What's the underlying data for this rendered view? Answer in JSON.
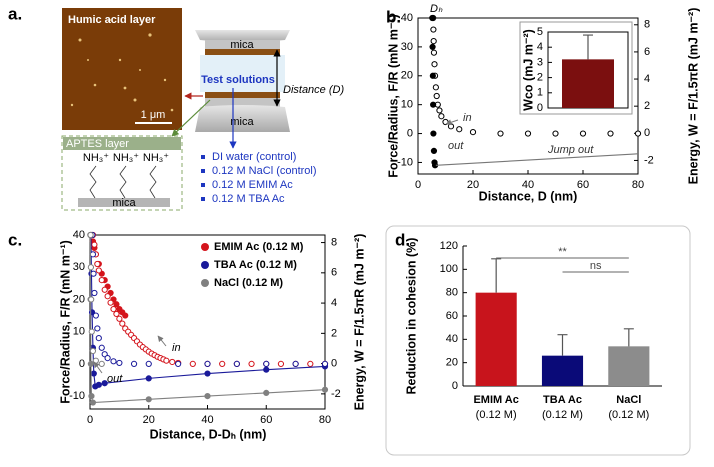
{
  "diagram": {
    "panel_label": "a.",
    "afm_title": "Humic acid layer",
    "scale_bar": "1 μm",
    "aptes_title": "APTES layer",
    "amine_groups": [
      "NH₃⁺",
      "NH₃⁺",
      "NH₃⁺"
    ],
    "mica_labels": [
      "mica",
      "mica",
      "mica"
    ],
    "test_solutions": "Test solutions",
    "distance": "Distance (D)",
    "solutions": [
      "DI water (control)",
      "0.12 M NaCl (control)",
      "0.12 M EMIM Ac",
      "0.12 M TBA Ac"
    ]
  },
  "chart_data": [
    {
      "type": "scatter",
      "panel_label": "b.",
      "xlabel": "Distance, D (nm)",
      "ylabel": "Force/Radius, F/R (mN m⁻¹)",
      "y2label": "Energy, W = F/1.5πR (mJ m⁻²)",
      "annotations": [
        "Dₕ"
      ],
      "xlim": [
        0,
        80
      ],
      "xticks": [
        0,
        20,
        40,
        60,
        80
      ],
      "ylim": [
        -14,
        40
      ],
      "yticks": [
        -10,
        0,
        10,
        20,
        30,
        40
      ],
      "y2lim": [
        -3.0,
        8.5
      ],
      "y2ticks": [
        -2,
        0,
        2,
        4,
        6,
        8
      ],
      "series": [
        {
          "name": "in",
          "color": "#000000",
          "marker": "open",
          "line": false,
          "x": [
            5.5,
            5.6,
            5.7,
            5.8,
            6,
            6.2,
            6.5,
            6.8,
            7.2,
            7.8,
            8.5,
            10,
            12,
            15,
            20,
            30,
            40,
            50,
            60,
            70,
            80
          ],
          "values": [
            40,
            36,
            32,
            28,
            24,
            20,
            16,
            13,
            10,
            8,
            6,
            4,
            2.5,
            1.5,
            0.5,
            0,
            0,
            0,
            0,
            0,
            0
          ]
        },
        {
          "name": "out",
          "color": "#000000",
          "marker": "filled",
          "line": false,
          "x": [
            5.2,
            5.3,
            5.4,
            5.5,
            5.6,
            5.8,
            6,
            6.2
          ],
          "values": [
            40,
            30,
            20,
            10,
            0,
            -6,
            -10,
            -11
          ]
        },
        {
          "name": "Jump out",
          "color": "#777777",
          "marker": "none",
          "line": true,
          "x": [
            6.5,
            80
          ],
          "values": [
            -11,
            -7
          ]
        }
      ]
    },
    {
      "type": "bar",
      "ylabel": "Wco (mJ m⁻²)",
      "ylim": [
        0,
        5
      ],
      "yticks": [
        0,
        1,
        2,
        3,
        4,
        5
      ],
      "values": [
        3.2
      ],
      "errors": [
        1.6
      ],
      "color": "#7b0f0f"
    },
    {
      "type": "scatter",
      "panel_label": "c.",
      "xlabel": "Distance, D-Dₕ (nm)",
      "ylabel": "Force/Radius, F/R (mN m⁻¹)",
      "y2label": "Energy, W = F/1.5πR (mJ m⁻²)",
      "annotations": [
        "in",
        "out"
      ],
      "legend": "upper right",
      "xlim": [
        0,
        80
      ],
      "xticks": [
        0,
        20,
        40,
        60,
        80
      ],
      "ylim": [
        -14,
        40
      ],
      "yticks": [
        -10,
        0,
        10,
        20,
        30,
        40
      ],
      "y2lim": [
        -3.0,
        8.5
      ],
      "y2ticks": [
        -2,
        0,
        2,
        4,
        6,
        8
      ],
      "series": [
        {
          "name": "EMIM Ac (0.12 M)",
          "color": "#d4141c",
          "approach": {
            "marker": "open",
            "line": false,
            "x": [
              1,
              1.5,
              2,
              2.5,
              3,
              4,
              5,
              6,
              7,
              8,
              9,
              10,
              11,
              12,
              13,
              14,
              15,
              16,
              17,
              18,
              19,
              20,
              21,
              22,
              23,
              24,
              25,
              26,
              28,
              30,
              35,
              40,
              45,
              50,
              55,
              60,
              65,
              70,
              75,
              80
            ],
            "values": [
              40,
              37,
              34,
              31,
              29,
              26,
              23,
              21,
              19,
              17,
              15.5,
              14,
              12.5,
              11,
              10,
              9,
              8,
              7,
              6,
              5.2,
              4.5,
              3.8,
              3.2,
              2.7,
              2.2,
              1.8,
              1.4,
              1,
              0.6,
              0.3,
              0,
              0,
              0,
              0,
              0,
              0,
              0,
              0,
              0,
              0
            ]
          },
          "separation": {
            "marker": "filled",
            "line": false,
            "x": [
              0.5,
              1,
              1.5,
              2,
              3,
              4,
              5,
              6,
              7,
              8,
              9,
              10,
              11,
              12
            ],
            "values": [
              40,
              38,
              36,
              34,
              31,
              28,
              26,
              24,
              22,
              20,
              18.5,
              17,
              16,
              15
            ]
          }
        },
        {
          "name": "TBA Ac (0.12 M)",
          "color": "#1a1a9a",
          "approach": {
            "marker": "open",
            "line": false,
            "x": [
              0.8,
              1,
              1.2,
              1.5,
              2,
              2.5,
              3,
              4,
              5,
              6,
              8,
              10,
              15,
              20,
              30,
              40,
              50,
              60,
              70,
              80
            ],
            "values": [
              40,
              34,
              28,
              22,
              15,
              11,
              8,
              5,
              3,
              1.8,
              0.8,
              0.3,
              0,
              0,
              0,
              0,
              0,
              0,
              0,
              0
            ]
          },
          "separation": {
            "marker": "filled",
            "line": true,
            "x": [
              0.3,
              0.5,
              0.7,
              1,
              1.3,
              1.8,
              3,
              5,
              20,
              40,
              60,
              80
            ],
            "values": [
              40,
              28,
              16,
              5,
              -3,
              -7,
              -6.5,
              -6,
              -4.5,
              -3,
              -1.8,
              -0.8
            ]
          }
        },
        {
          "name": "NaCl (0.12 M)",
          "color": "#808080",
          "approach": {
            "marker": "open",
            "line": false,
            "x": [
              0.2,
              0.3,
              0.4,
              0.6,
              1,
              2,
              4
            ],
            "values": [
              40,
              30,
              20,
              10,
              4,
              1,
              0
            ]
          },
          "separation": {
            "marker": "filled",
            "line": true,
            "x": [
              0.1,
              0.2,
              0.3,
              0.5,
              1,
              20,
              40,
              60,
              80
            ],
            "values": [
              40,
              20,
              0,
              -10,
              -12,
              -11,
              -10,
              -9,
              -8
            ]
          }
        }
      ]
    },
    {
      "type": "bar",
      "panel_label": "d.",
      "ylabel": "Reduction in cohesion (%)",
      "categories": [
        [
          "EMIM Ac",
          "(0.12 M)"
        ],
        [
          "TBA Ac",
          "(0.12 M)"
        ],
        [
          "NaCl",
          "(0.12 M)"
        ]
      ],
      "values": [
        80,
        26,
        34
      ],
      "errors": [
        29,
        18,
        15
      ],
      "colors": [
        "#c8141c",
        "#0a0a78",
        "#8c8c8c"
      ],
      "ylim": [
        0,
        120
      ],
      "yticks": [
        0,
        20,
        40,
        60,
        80,
        100,
        120
      ],
      "annotations": [
        "**",
        "ns"
      ]
    }
  ]
}
